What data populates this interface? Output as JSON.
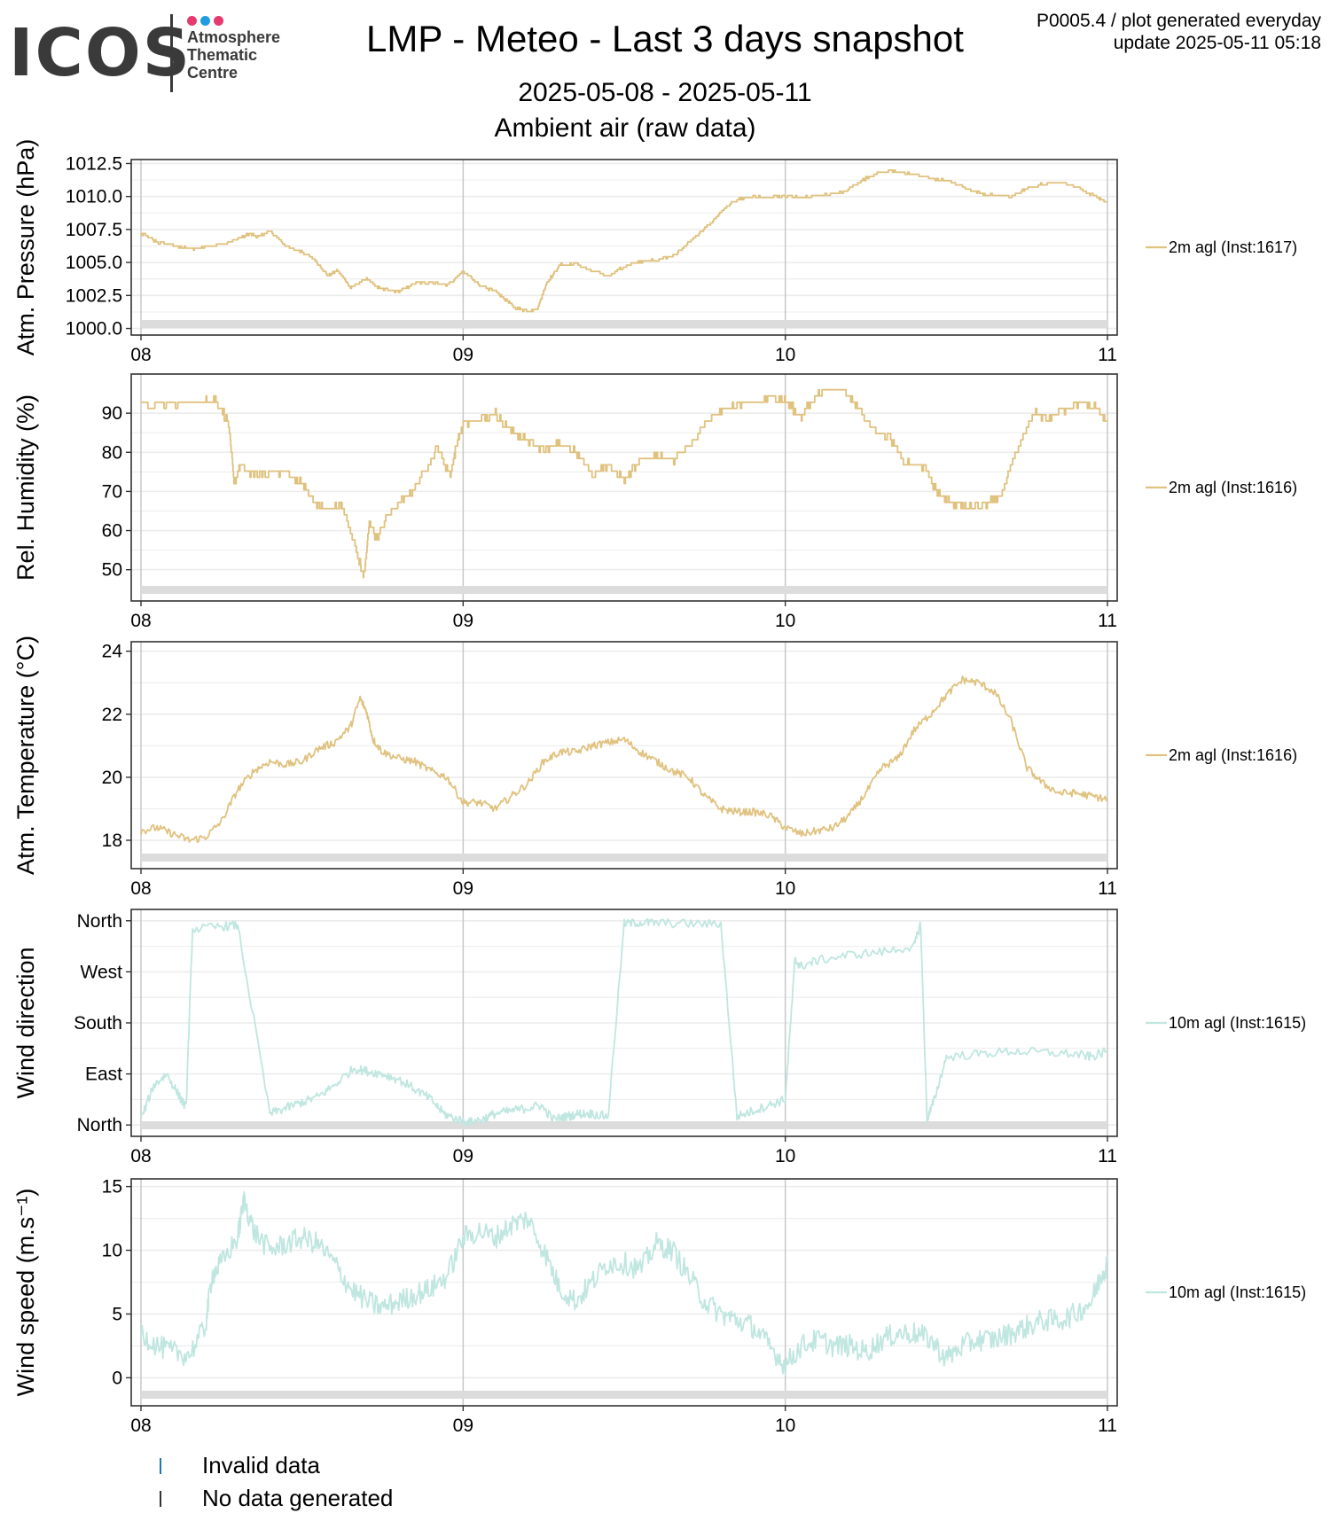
{
  "header": {
    "logo": {
      "word": "ICOS",
      "line1": "Atmosphere",
      "line2": "Thematic",
      "line3": "Centre",
      "dot_colors": [
        "#e6396f",
        "#1f9de0",
        "#e6396f"
      ]
    },
    "title": "LMP - Meteo - Last 3 days snapshot",
    "date_range": "2025-05-08 - 2025-05-11",
    "subtitle": "Ambient air (raw data)",
    "product_line": "P0005.4 / plot generated everyday",
    "update_line": "update  2025-05-11 05:18"
  },
  "colors": {
    "ambient": "#e0c27f",
    "wind": "#bfe6e0",
    "invalid": "#1f77b4",
    "no_data": "#333333",
    "grid_major": "#c8c8c8",
    "grid_minor": "#ececec",
    "nodata_band": "#dcdcdc"
  },
  "legend": {
    "invalid": "Invalid data",
    "no_data": "No data generated"
  },
  "chart_data": [
    {
      "type": "line",
      "ylabel": "Atm. Pressure (hPa)",
      "series_name": "2m agl (Inst:1617)",
      "color_key": "ambient",
      "x_ticks": [
        "08",
        "09",
        "10",
        "11"
      ],
      "x": [
        0,
        0.05,
        0.1,
        0.16,
        0.2,
        0.28,
        0.34,
        0.36,
        0.4,
        0.45,
        0.5,
        0.54,
        0.58,
        0.61,
        0.65,
        0.7,
        0.74,
        0.8,
        0.85,
        0.9,
        0.95,
        1.0,
        1.05,
        1.1,
        1.13,
        1.16,
        1.2,
        1.23,
        1.26,
        1.3,
        1.35,
        1.4,
        1.45,
        1.5,
        1.55,
        1.6,
        1.66,
        1.7,
        1.75,
        1.8,
        1.85,
        1.9,
        1.95,
        2.0,
        2.05,
        2.1,
        2.18,
        2.25,
        2.32,
        2.38,
        2.45,
        2.52,
        2.58,
        2.62,
        2.7,
        2.75,
        2.8,
        2.86,
        2.92,
        2.97,
        3.0
      ],
      "y": [
        1007.2,
        1006.5,
        1006.3,
        1006.0,
        1006.2,
        1006.6,
        1007.2,
        1006.9,
        1007.4,
        1006.2,
        1005.8,
        1005.2,
        1004.0,
        1004.4,
        1003.1,
        1003.8,
        1003.0,
        1002.8,
        1003.4,
        1003.5,
        1003.3,
        1004.3,
        1003.3,
        1002.8,
        1002.2,
        1001.6,
        1001.3,
        1001.5,
        1003.5,
        1004.8,
        1004.9,
        1004.3,
        1004.0,
        1004.7,
        1005.1,
        1005.2,
        1005.6,
        1006.5,
        1007.6,
        1008.8,
        1009.8,
        1010.0,
        1009.9,
        1010.0,
        1009.9,
        1010.1,
        1010.3,
        1011.4,
        1012.0,
        1011.7,
        1011.4,
        1011.1,
        1010.4,
        1010.2,
        1010.0,
        1010.6,
        1011.0,
        1011.1,
        1010.5,
        1009.9,
        1009.6
      ],
      "ylim": [
        999.5,
        1012.8
      ],
      "ticks": [
        1000.0,
        1002.5,
        1005.0,
        1007.5,
        1010.0,
        1012.5
      ],
      "tick_labels": [
        "1000.0",
        "1002.5",
        "1005.0",
        "1007.5",
        "1010.0",
        "1012.5"
      ],
      "noise": 0.08,
      "step": true
    },
    {
      "type": "line",
      "ylabel": "Rel. Humidity (%)",
      "series_name": "2m agl (Inst:1616)",
      "color_key": "ambient",
      "x_ticks": [
        "08",
        "09",
        "10",
        "11"
      ],
      "x": [
        0,
        0.1,
        0.2,
        0.23,
        0.27,
        0.29,
        0.31,
        0.35,
        0.4,
        0.45,
        0.5,
        0.54,
        0.58,
        0.62,
        0.65,
        0.67,
        0.69,
        0.71,
        0.73,
        0.76,
        0.8,
        0.84,
        0.88,
        0.92,
        0.96,
        0.98,
        1.0,
        1.05,
        1.1,
        1.14,
        1.2,
        1.25,
        1.3,
        1.35,
        1.4,
        1.45,
        1.5,
        1.55,
        1.6,
        1.65,
        1.7,
        1.75,
        1.8,
        1.85,
        1.9,
        1.97,
        2.0,
        2.05,
        2.08,
        2.12,
        2.18,
        2.22,
        2.27,
        2.32,
        2.37,
        2.42,
        2.48,
        2.52,
        2.56,
        2.62,
        2.67,
        2.72,
        2.77,
        2.82,
        2.87,
        2.92,
        2.97,
        3.0
      ],
      "y": [
        92,
        92.5,
        93,
        93.5,
        88,
        72,
        77,
        74,
        75,
        75,
        72,
        67,
        65,
        67,
        60,
        55,
        48,
        62,
        58,
        63,
        67,
        70,
        75,
        81,
        74,
        82,
        87,
        88,
        90,
        86,
        83,
        81,
        82,
        80,
        74,
        77,
        73,
        78,
        79,
        78,
        81,
        87,
        91,
        92,
        93,
        94,
        93,
        89,
        93,
        96,
        96,
        92,
        86,
        84,
        77,
        77,
        69,
        67,
        66,
        67,
        69,
        81,
        90,
        89,
        91,
        93,
        91,
        88
      ],
      "ylim": [
        42,
        100
      ],
      "ticks": [
        50,
        60,
        70,
        80,
        90
      ],
      "tick_labels": [
        "50",
        "60",
        "70",
        "80",
        "90"
      ],
      "noise": 0.8,
      "step": true
    },
    {
      "type": "line",
      "ylabel": "Atm. Temperature (°C)",
      "series_name": "2m agl (Inst:1616)",
      "color_key": "ambient",
      "x_ticks": [
        "08",
        "09",
        "10",
        "11"
      ],
      "x": [
        0,
        0.05,
        0.1,
        0.15,
        0.2,
        0.25,
        0.3,
        0.35,
        0.4,
        0.45,
        0.5,
        0.55,
        0.6,
        0.65,
        0.68,
        0.7,
        0.72,
        0.75,
        0.8,
        0.85,
        0.9,
        0.95,
        1.0,
        1.05,
        1.1,
        1.15,
        1.2,
        1.25,
        1.3,
        1.35,
        1.4,
        1.45,
        1.5,
        1.55,
        1.6,
        1.65,
        1.7,
        1.75,
        1.8,
        1.85,
        1.9,
        1.95,
        2.0,
        2.05,
        2.1,
        2.15,
        2.2,
        2.25,
        2.3,
        2.35,
        2.4,
        2.45,
        2.5,
        2.55,
        2.6,
        2.65,
        2.7,
        2.75,
        2.8,
        2.85,
        2.9,
        2.95,
        3.0
      ],
      "y": [
        18.3,
        18.4,
        18.2,
        18.0,
        18.1,
        18.6,
        19.6,
        20.2,
        20.5,
        20.4,
        20.5,
        20.9,
        21.1,
        21.6,
        22.5,
        22.1,
        21.2,
        20.8,
        20.6,
        20.5,
        20.2,
        20.0,
        19.2,
        19.2,
        19.0,
        19.4,
        19.8,
        20.5,
        20.8,
        20.8,
        21.0,
        21.1,
        21.2,
        20.8,
        20.5,
        20.2,
        20.0,
        19.4,
        19.0,
        18.9,
        18.9,
        18.8,
        18.4,
        18.2,
        18.3,
        18.4,
        18.8,
        19.5,
        20.3,
        20.6,
        21.5,
        22.0,
        22.6,
        23.1,
        23.0,
        22.7,
        21.8,
        20.3,
        19.8,
        19.5,
        19.5,
        19.4,
        19.3
      ],
      "ylim": [
        17.1,
        24.3
      ],
      "ticks": [
        18,
        20,
        22,
        24
      ],
      "tick_labels": [
        "18",
        "20",
        "22",
        "24"
      ],
      "noise": 0.12,
      "step": false
    },
    {
      "type": "line",
      "ylabel": "Wind direction",
      "series_name": "10m agl (Inst:1615)",
      "color_key": "wind",
      "x_ticks": [
        "08",
        "09",
        "10",
        "11"
      ],
      "x": [
        0,
        0.04,
        0.08,
        0.12,
        0.14,
        0.16,
        0.25,
        0.3,
        0.4,
        0.45,
        0.5,
        0.55,
        0.6,
        0.66,
        0.7,
        0.75,
        0.8,
        0.86,
        0.9,
        0.94,
        0.98,
        1.02,
        1.06,
        1.1,
        1.15,
        1.2,
        1.24,
        1.28,
        1.32,
        1.36,
        1.4,
        1.45,
        1.5,
        1.55,
        1.6,
        1.7,
        1.8,
        1.85,
        1.9,
        1.95,
        2.0,
        2.03,
        2.05,
        2.1,
        2.2,
        2.3,
        2.4,
        2.42,
        2.44,
        2.46,
        2.5,
        2.6,
        2.7,
        2.8,
        2.9,
        2.95,
        3.0
      ],
      "y": [
        10,
        70,
        90,
        50,
        30,
        345,
        350,
        352,
        20,
        30,
        40,
        50,
        70,
        100,
        95,
        90,
        80,
        60,
        45,
        20,
        10,
        5,
        10,
        20,
        25,
        30,
        35,
        10,
        15,
        20,
        20,
        15,
        355,
        357,
        356,
        355,
        354,
        15,
        25,
        35,
        45,
        290,
        280,
        290,
        300,
        305,
        315,
        355,
        10,
        40,
        120,
        125,
        130,
        128,
        125,
        120,
        130
      ],
      "ylim": [
        -20,
        380
      ],
      "ticks": [
        0,
        90,
        180,
        270,
        360
      ],
      "tick_labels": [
        "North",
        "East",
        "South",
        "West",
        "North"
      ],
      "noise": 8,
      "step": false
    },
    {
      "type": "line",
      "ylabel": "Wind speed (m.s⁻¹)",
      "series_name": "10m agl (Inst:1615)",
      "color_key": "wind",
      "x_ticks": [
        "08",
        "09",
        "10",
        "11"
      ],
      "x": [
        0,
        0.05,
        0.1,
        0.15,
        0.2,
        0.22,
        0.25,
        0.3,
        0.32,
        0.35,
        0.4,
        0.45,
        0.5,
        0.55,
        0.6,
        0.65,
        0.7,
        0.75,
        0.8,
        0.85,
        0.9,
        0.95,
        1.0,
        1.05,
        1.1,
        1.15,
        1.2,
        1.25,
        1.3,
        1.35,
        1.4,
        1.45,
        1.5,
        1.55,
        1.6,
        1.65,
        1.7,
        1.75,
        1.8,
        1.85,
        1.9,
        1.95,
        2.0,
        2.05,
        2.1,
        2.15,
        2.2,
        2.25,
        2.3,
        2.35,
        2.4,
        2.45,
        2.5,
        2.55,
        2.6,
        2.65,
        2.7,
        2.75,
        2.8,
        2.85,
        2.9,
        2.95,
        2.98,
        3.0
      ],
      "y": [
        3.5,
        2.5,
        2.0,
        1.8,
        4.0,
        8.0,
        9.0,
        11.0,
        14.0,
        11.5,
        10.0,
        10.5,
        11.0,
        10.5,
        9.0,
        7.0,
        6.0,
        5.5,
        6.0,
        6.5,
        7.0,
        8.0,
        11.0,
        11.5,
        11.0,
        12.0,
        12.5,
        10.0,
        7.0,
        6.0,
        7.5,
        9.0,
        9.0,
        8.5,
        10.5,
        10.0,
        8.0,
        6.0,
        5.0,
        4.5,
        4.0,
        2.5,
        1.0,
        2.5,
        3.0,
        2.5,
        2.5,
        2.0,
        3.0,
        3.5,
        3.5,
        3.0,
        1.5,
        2.5,
        3.0,
        3.0,
        3.5,
        4.0,
        4.5,
        4.5,
        5.0,
        6.0,
        8.0,
        9.0
      ],
      "ylim": [
        -2.2,
        15.6
      ],
      "ticks": [
        0,
        5,
        10,
        15
      ],
      "tick_labels": [
        "0",
        "5",
        "10",
        "15"
      ],
      "noise": 0.9,
      "step": false
    }
  ]
}
